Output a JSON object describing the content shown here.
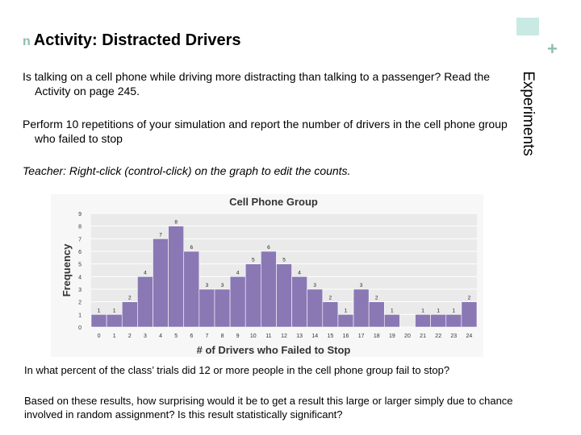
{
  "header": {
    "title": "Activity: Distracted Drivers",
    "section_label": "Experiments",
    "plus_symbol": "+",
    "bullet_symbol": "n"
  },
  "body": {
    "paragraph_1": "Is talking on a cell phone while driving more distracting than talking to a passenger? Read the Activity on page 245.",
    "paragraph_2": "Perform 10 repetitions of your simulation and report the number of drivers in the cell phone group who failed to stop",
    "teacher_note": "Teacher: Right-click (control-click) on the graph to edit the counts.",
    "question": "In what percent of the class’ trials did 12 or more people in the cell phone group fail to stop?",
    "followup": "Based on these results, how surprising would it be to get a result this large or larger simply due to chance involved in random assignment? Is this result statistically significant?"
  },
  "colors": {
    "bar": "#8a78b5",
    "bar_stroke": "#ffffff",
    "plot_background": "#eaeaea",
    "chart_frame": "#f7f7f7",
    "accent": "#8fbcb3",
    "accent_light": "#c9e9e3"
  },
  "chart_data": {
    "type": "bar",
    "title": "Cell Phone Group",
    "xlabel": "# of Drivers who Failed to Stop",
    "ylabel": "Frequency",
    "categories": [
      "0",
      "1",
      "2",
      "3",
      "4",
      "5",
      "6",
      "7",
      "8",
      "9",
      "10",
      "11",
      "12",
      "13",
      "14",
      "15",
      "16",
      "17",
      "18",
      "19",
      "20",
      "21",
      "22",
      "23",
      "24"
    ],
    "values": [
      1,
      1,
      2,
      4,
      7,
      8,
      6,
      3,
      3,
      4,
      5,
      6,
      5,
      4,
      3,
      2,
      1,
      3,
      2,
      1,
      0,
      1,
      1,
      1,
      2
    ],
    "data_labels": [
      "1",
      "1",
      "2",
      "4",
      "7",
      "8",
      "6",
      "3",
      "3",
      "4",
      "5",
      "6",
      "5",
      "4",
      "3",
      "2",
      "1",
      "3",
      "2",
      "1",
      "",
      "1",
      "1",
      "1",
      "2"
    ],
    "yticks": [
      "0",
      "1",
      "2",
      "3",
      "4",
      "5",
      "6",
      "7",
      "8",
      "9"
    ],
    "ylim": [
      0,
      9
    ],
    "grid": true,
    "legend": "none"
  }
}
